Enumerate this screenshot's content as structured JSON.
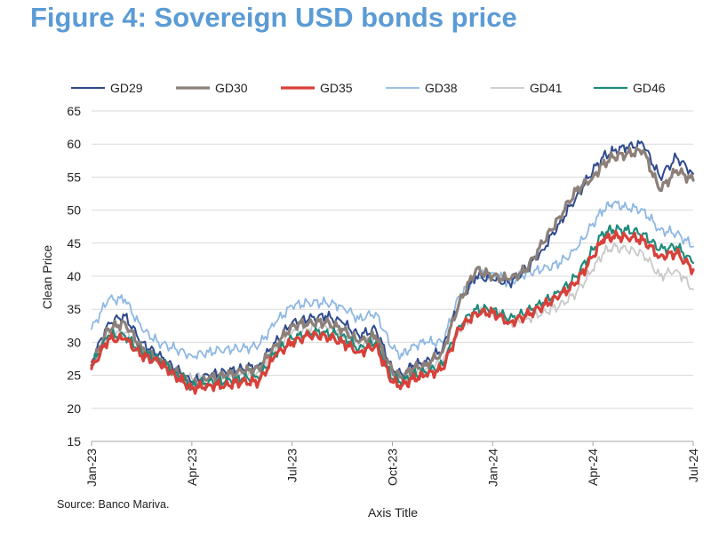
{
  "figure_title": "Figure 4: Sovereign USD bonds price",
  "source": "Source: Banco Mariva.",
  "chart_data": {
    "type": "line",
    "title": "Figure 4: Sovereign USD bonds price",
    "xlabel": "Axis Title",
    "ylabel": "Clean Price",
    "ylim": [
      15,
      65
    ],
    "yticks": [
      "15",
      "20",
      "25",
      "30",
      "35",
      "40",
      "45",
      "50",
      "55",
      "60",
      "65"
    ],
    "xlim": [
      0,
      18
    ],
    "xticks": [
      {
        "label": "Jan-23",
        "pos": 0
      },
      {
        "label": "Apr-23",
        "pos": 3
      },
      {
        "label": "Jul-23",
        "pos": 6
      },
      {
        "label": "Oct-23",
        "pos": 9
      },
      {
        "label": "Jan-24",
        "pos": 12
      },
      {
        "label": "Apr-24",
        "pos": 15
      },
      {
        "label": "Jul-24",
        "pos": 18
      }
    ],
    "legend_position": "top",
    "x": [
      0,
      0.5,
      1,
      1.5,
      2,
      2.5,
      3,
      3.5,
      4,
      4.5,
      5,
      5.5,
      6,
      6.5,
      7,
      7.5,
      8,
      8.5,
      9,
      9.3,
      9.6,
      10,
      10.5,
      11,
      11.5,
      12,
      12.5,
      13,
      13.5,
      14,
      14.5,
      15,
      15.3,
      15.6,
      16,
      16.5,
      17,
      17.5,
      18
    ],
    "series": [
      {
        "name": "GD29",
        "color": "#2E4A8C",
        "values": [
          27,
          33,
          34,
          30,
          28,
          26,
          24,
          25,
          25.5,
          26,
          26.5,
          30,
          33,
          33.5,
          34,
          33,
          31,
          32,
          26,
          25,
          26.5,
          27,
          29,
          36,
          40,
          39.5,
          39,
          41,
          44,
          48,
          52,
          56,
          58,
          59,
          59.5,
          60,
          55,
          58,
          55.5
        ]
      },
      {
        "name": "GD30",
        "color": "#8C8079",
        "values": [
          26.5,
          32,
          33,
          29,
          27.5,
          25.5,
          23.5,
          24.5,
          25,
          25.5,
          26,
          29.5,
          32.5,
          33,
          33,
          32,
          30,
          31,
          25.5,
          24.5,
          26,
          26.5,
          28.5,
          36,
          41,
          40,
          39.5,
          41,
          45,
          49,
          53,
          55,
          57,
          58,
          58.5,
          59,
          53,
          56,
          54.5
        ]
      },
      {
        "name": "GD35",
        "color": "#D9403A",
        "values": [
          26,
          30.5,
          30.5,
          28,
          27,
          25,
          23,
          23.5,
          23.5,
          24,
          24,
          28,
          30,
          31,
          31,
          30,
          28.5,
          29.5,
          24,
          23.5,
          24.5,
          25,
          26,
          32,
          34.5,
          34.5,
          33,
          34,
          35.5,
          37,
          39,
          43,
          45.5,
          46,
          46,
          45.5,
          43,
          43.5,
          41
        ]
      },
      {
        "name": "GD38",
        "color": "#8FB8E3",
        "values": [
          32,
          36.5,
          36.5,
          32,
          30,
          29,
          28,
          28.5,
          29,
          29,
          29.5,
          33,
          35.5,
          36,
          36,
          35.5,
          33.5,
          34.5,
          29,
          28,
          29.5,
          30,
          30,
          37,
          40,
          40.5,
          39,
          40.5,
          41,
          42,
          44,
          48,
          50,
          51,
          50.5,
          50,
          47,
          46.5,
          44.5
        ]
      },
      {
        "name": "GD41",
        "color": "#C9C9C9",
        "values": [
          27,
          31,
          31.5,
          28.5,
          27.5,
          25.5,
          24.5,
          25,
          25,
          25.5,
          25.5,
          29,
          31.5,
          32,
          32.5,
          31.5,
          29.5,
          30.5,
          25,
          24.5,
          25.5,
          26,
          27,
          32,
          34.5,
          34.5,
          33,
          33.5,
          34.5,
          35.5,
          37.5,
          41,
          43.5,
          44.5,
          44,
          43.5,
          40,
          41,
          38
        ]
      },
      {
        "name": "GD46",
        "color": "#1F8A7A",
        "values": [
          26.5,
          31,
          31,
          28.5,
          27.5,
          25.5,
          23.5,
          24,
          24,
          24.5,
          24.5,
          28.5,
          30.5,
          31.5,
          31.5,
          31,
          29,
          30,
          24.5,
          24,
          25,
          25.5,
          26.5,
          32.5,
          35,
          35,
          33.5,
          34.5,
          36,
          37.5,
          40,
          44,
          46.5,
          47,
          47,
          46.5,
          44,
          44.5,
          42
        ]
      }
    ]
  }
}
